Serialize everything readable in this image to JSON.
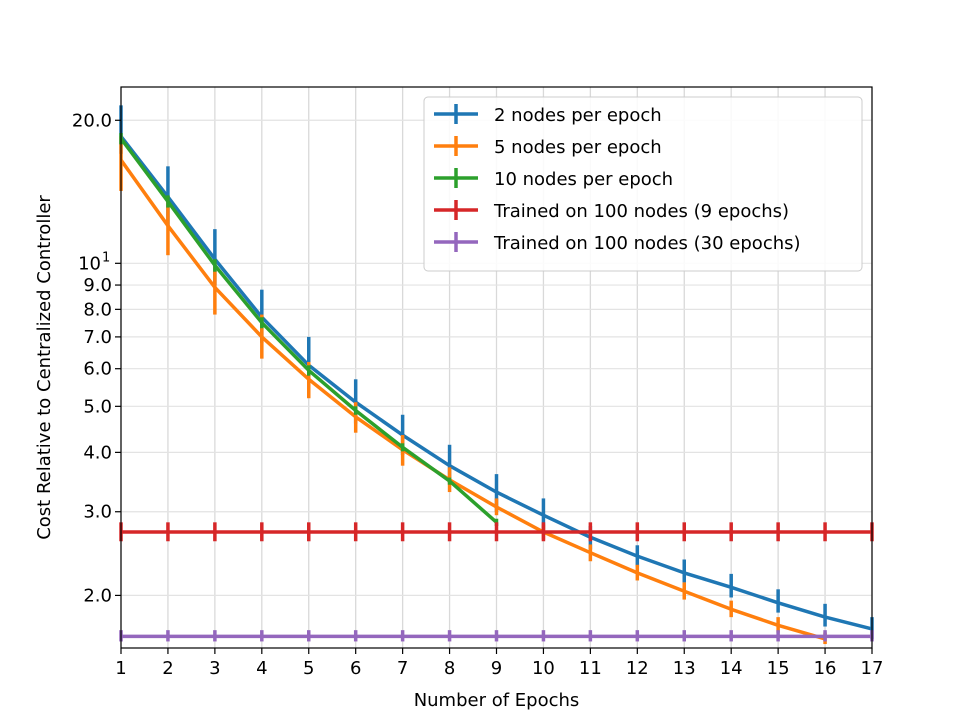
{
  "chart_data": {
    "type": "line",
    "title": "",
    "xlabel": "Number of Epochs",
    "ylabel": "Cost Relative to Centralized Controller",
    "yscale": "log",
    "xlim": [
      1,
      17
    ],
    "ylim": [
      1.55,
      23.5
    ],
    "grid": true,
    "legend_position": "top-right",
    "xticks": [
      1,
      2,
      3,
      4,
      5,
      6,
      7,
      8,
      9,
      10,
      11,
      12,
      13,
      14,
      15,
      16,
      17
    ],
    "xtick_labels": [
      "1",
      "2",
      "3",
      "4",
      "5",
      "6",
      "7",
      "8",
      "9",
      "10",
      "11",
      "12",
      "13",
      "14",
      "15",
      "16",
      "17"
    ],
    "yticks": [
      {
        "value": 2.0,
        "label": "2.0"
      },
      {
        "value": 3.0,
        "label": "3.0"
      },
      {
        "value": 4.0,
        "label": "4.0"
      },
      {
        "value": 5.0,
        "label": "5.0"
      },
      {
        "value": 6.0,
        "label": "6.0"
      },
      {
        "value": 7.0,
        "label": "7.0"
      },
      {
        "value": 8.0,
        "label": "8.0"
      },
      {
        "value": 9.0,
        "label": "9.0"
      },
      {
        "value": 10.0,
        "label": "10",
        "superscript": "1"
      },
      {
        "value": 20.0,
        "label": "20.0"
      }
    ],
    "series": [
      {
        "name": "2 nodes per epoch",
        "color": "#1f77b4",
        "x": [
          1,
          2,
          3,
          4,
          5,
          6,
          7,
          8,
          9,
          10,
          11,
          12,
          13,
          14,
          15,
          16,
          17
        ],
        "y": [
          18.5,
          13.8,
          10.2,
          7.7,
          6.1,
          5.1,
          4.35,
          3.75,
          3.3,
          2.95,
          2.65,
          2.42,
          2.23,
          2.08,
          1.93,
          1.8,
          1.7
        ],
        "err_low": [
          17.0,
          12.0,
          9.0,
          6.8,
          5.5,
          4.6,
          3.95,
          3.45,
          3.0,
          2.75,
          2.5,
          2.3,
          2.13,
          1.98,
          1.84,
          1.72,
          1.62
        ],
        "err_high": [
          21.5,
          16.0,
          11.8,
          8.8,
          7.0,
          5.7,
          4.8,
          4.15,
          3.6,
          3.2,
          2.8,
          2.55,
          2.38,
          2.22,
          2.06,
          1.92,
          1.8
        ]
      },
      {
        "name": "5 nodes per epoch",
        "color": "#ff7f0e",
        "x": [
          1,
          2,
          3,
          4,
          5,
          6,
          7,
          8,
          9,
          10,
          11,
          12,
          13,
          14,
          15,
          16
        ],
        "y": [
          16.5,
          12.0,
          8.9,
          7.0,
          5.7,
          4.75,
          4.05,
          3.5,
          3.07,
          2.72,
          2.46,
          2.23,
          2.04,
          1.87,
          1.73,
          1.62
        ],
        "err_low": [
          14.2,
          10.4,
          7.8,
          6.3,
          5.2,
          4.4,
          3.75,
          3.3,
          2.95,
          2.62,
          2.36,
          2.15,
          1.96,
          1.8,
          1.67,
          1.58
        ],
        "err_high": [
          18.5,
          13.5,
          10.0,
          7.8,
          6.2,
          5.1,
          4.35,
          3.72,
          3.2,
          2.82,
          2.56,
          2.32,
          2.13,
          1.95,
          1.8,
          1.67
        ]
      },
      {
        "name": "10 nodes per epoch",
        "color": "#2ca02c",
        "x": [
          1,
          2,
          3,
          4,
          5,
          6,
          7,
          8,
          9
        ],
        "y": [
          18.3,
          13.5,
          9.9,
          7.5,
          5.95,
          4.9,
          4.1,
          3.48,
          2.85
        ],
        "err_low": [
          17.8,
          13.1,
          9.6,
          7.3,
          5.8,
          4.8,
          4.02,
          3.42,
          2.8
        ],
        "err_high": [
          18.8,
          13.9,
          10.2,
          7.7,
          6.1,
          5.0,
          4.18,
          3.54,
          2.9
        ]
      },
      {
        "name": "Trained on 100 nodes (9 epochs)",
        "color": "#d62728",
        "x": [
          1,
          2,
          3,
          4,
          5,
          6,
          7,
          8,
          9,
          10,
          11,
          12,
          13,
          14,
          15,
          16,
          17
        ],
        "y": [
          2.72,
          2.72,
          2.72,
          2.72,
          2.72,
          2.72,
          2.72,
          2.72,
          2.72,
          2.72,
          2.72,
          2.72,
          2.72,
          2.72,
          2.72,
          2.72,
          2.72
        ],
        "err_low": [
          2.6,
          2.6,
          2.6,
          2.6,
          2.6,
          2.6,
          2.6,
          2.6,
          2.6,
          2.6,
          2.6,
          2.6,
          2.6,
          2.6,
          2.6,
          2.6,
          2.6
        ],
        "err_high": [
          2.85,
          2.85,
          2.85,
          2.85,
          2.85,
          2.85,
          2.85,
          2.85,
          2.85,
          2.85,
          2.85,
          2.85,
          2.85,
          2.85,
          2.85,
          2.85,
          2.85
        ]
      },
      {
        "name": "Trained on 100 nodes (30 epochs)",
        "color": "#9467bd",
        "x": [
          1,
          2,
          3,
          4,
          5,
          6,
          7,
          8,
          9,
          10,
          11,
          12,
          13,
          14,
          15,
          16,
          17
        ],
        "y": [
          1.64,
          1.64,
          1.64,
          1.64,
          1.64,
          1.64,
          1.64,
          1.64,
          1.64,
          1.64,
          1.64,
          1.64,
          1.64,
          1.64,
          1.64,
          1.64,
          1.64
        ],
        "err_low": [
          1.6,
          1.6,
          1.6,
          1.6,
          1.6,
          1.6,
          1.6,
          1.6,
          1.6,
          1.6,
          1.6,
          1.6,
          1.6,
          1.6,
          1.6,
          1.6,
          1.6
        ],
        "err_high": [
          1.69,
          1.69,
          1.69,
          1.69,
          1.69,
          1.69,
          1.69,
          1.69,
          1.69,
          1.69,
          1.69,
          1.69,
          1.69,
          1.69,
          1.69,
          1.69,
          1.69
        ]
      }
    ]
  }
}
